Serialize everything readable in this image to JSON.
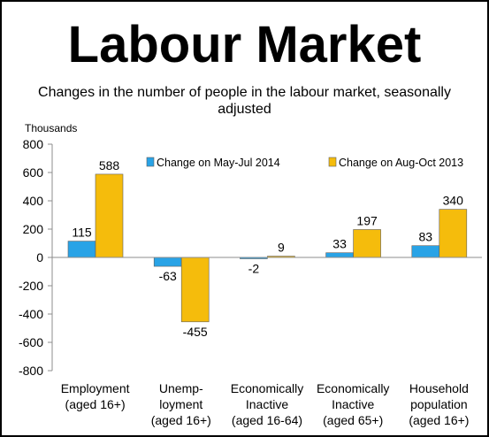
{
  "chart_data": {
    "type": "bar",
    "title": "Labour Market",
    "subtitle": "Changes in the number of people in the labour market, seasonally adjusted",
    "ylabel": "Thousands",
    "xlabel": "",
    "ylim": [
      -800,
      800
    ],
    "yticks": [
      800,
      600,
      400,
      200,
      0,
      -200,
      -400,
      -600,
      -800
    ],
    "grid": false,
    "legend_position": "top-right",
    "categories": [
      [
        "Employment",
        "(aged 16+)"
      ],
      [
        "Unemp-",
        "loyment",
        "(aged 16+)"
      ],
      [
        "Economically",
        "Inactive",
        "(aged 16-64)"
      ],
      [
        "Economically",
        "Inactive",
        "(aged 65+)"
      ],
      [
        "Household",
        "population",
        "(aged 16+)"
      ]
    ],
    "series": [
      {
        "name": "Change on May-Jul 2014",
        "color": "#29A3E6",
        "values": [
          115,
          -63,
          -2,
          33,
          83
        ]
      },
      {
        "name": "Change on Aug-Oct 2013",
        "color": "#F5BC0C",
        "values": [
          588,
          -455,
          9,
          197,
          340
        ]
      }
    ]
  }
}
